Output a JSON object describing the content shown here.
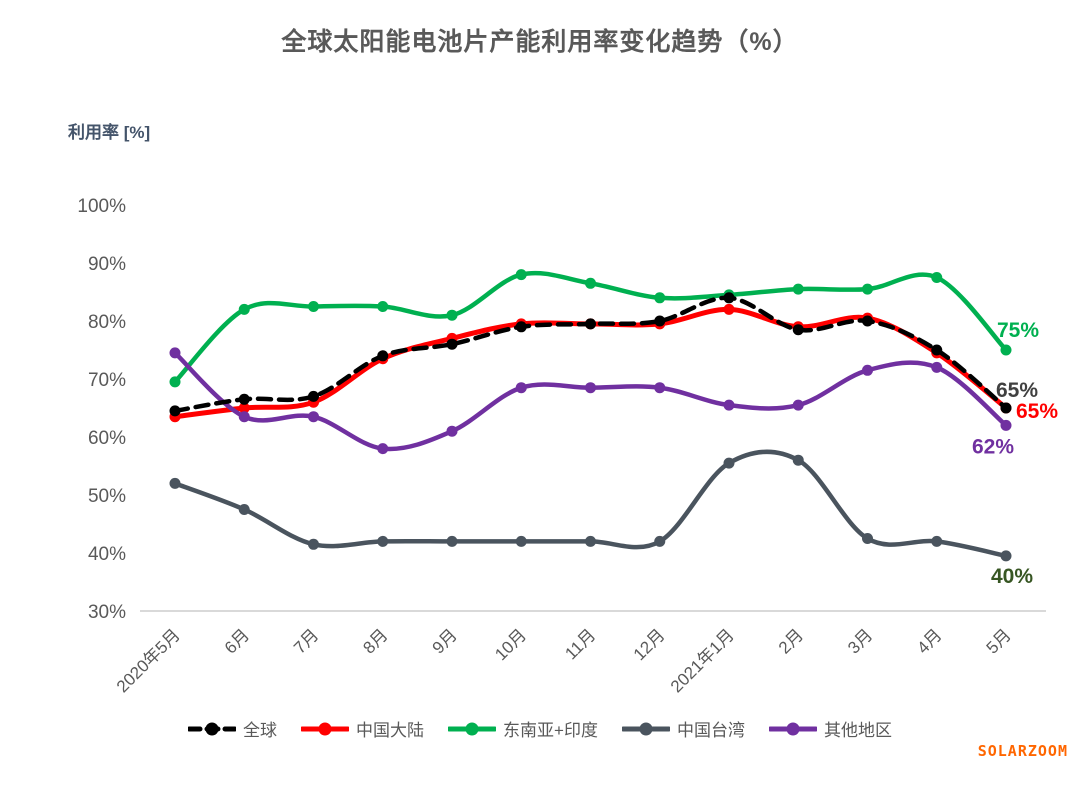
{
  "title": "全球太阳能电池片产能利用率变化趋势（%）",
  "y_axis_title": "利用率 [%]",
  "watermark": "SOLARZOOM",
  "colors": {
    "title_text": "#595959",
    "axis_text": "#595959",
    "y_axis_title_text": "#44546a",
    "axis_line": "#d9d9d9",
    "watermark": "#ff6600"
  },
  "chart_data": {
    "type": "line",
    "title": "全球太阳能电池片产能利用率变化趋势（%）",
    "xlabel": "",
    "ylabel": "利用率 [%]",
    "ylim": [
      30,
      100
    ],
    "y_tick_labels": [
      "100%",
      "90%",
      "80%",
      "70%",
      "60%",
      "50%",
      "40%",
      "30%"
    ],
    "grid": false,
    "legend_position": "bottom",
    "categories": [
      "2020年5月",
      "6月",
      "7月",
      "8月",
      "9月",
      "10月",
      "11月",
      "12月",
      "2021年1月",
      "2月",
      "3月",
      "4月",
      "5月"
    ],
    "series": [
      {
        "id": "global",
        "name": "全球",
        "color": "#000000",
        "dashed": true,
        "values": [
          64.5,
          66.5,
          67,
          74,
          76,
          79,
          79.5,
          80,
          84,
          78.5,
          80,
          75,
          65
        ]
      },
      {
        "id": "china-mainland",
        "name": "中国大陆",
        "color": "#ff0000",
        "dashed": false,
        "values": [
          63.5,
          65,
          66,
          73.5,
          77,
          79.5,
          79.5,
          79.5,
          82,
          79,
          80.5,
          74.5,
          65
        ]
      },
      {
        "id": "southeast-asia-india",
        "name": "东南亚+印度",
        "color": "#00b050",
        "dashed": false,
        "values": [
          69.5,
          82,
          82.5,
          82.5,
          81,
          88,
          86.5,
          84,
          84.5,
          85.5,
          85.5,
          87.5,
          75
        ]
      },
      {
        "id": "china-taiwan",
        "name": "中国台湾",
        "color": "#4a545e",
        "dashed": false,
        "values": [
          52,
          47.5,
          41.5,
          42,
          42,
          42,
          42,
          42,
          55.5,
          56,
          42.5,
          42,
          39.5
        ]
      },
      {
        "id": "other-regions",
        "name": "其他地区",
        "color": "#7030a0",
        "dashed": false,
        "values": [
          74.5,
          63.5,
          63.5,
          58,
          61,
          68.5,
          68.5,
          68.5,
          65.5,
          65.5,
          71.5,
          72,
          62
        ]
      }
    ],
    "end_labels": [
      {
        "series_index": 2,
        "text": "75%",
        "color": "#00b050"
      },
      {
        "series_index": 0,
        "text": "65%",
        "color": "#404040"
      },
      {
        "series_index": 1,
        "text": "65%",
        "color": "#ff0000"
      },
      {
        "series_index": 4,
        "text": "62%",
        "color": "#7030a0"
      },
      {
        "series_index": 3,
        "text": "40%",
        "color": "#375623"
      }
    ]
  }
}
